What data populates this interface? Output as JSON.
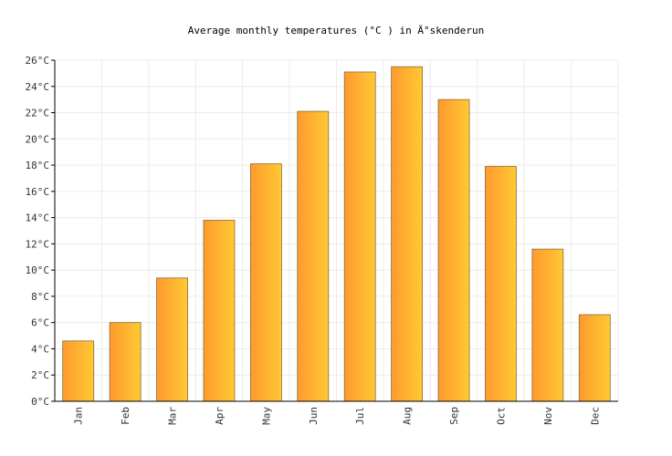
{
  "chart_data": {
    "type": "bar",
    "title": "Average monthly temperatures (°C ) in Ä°skenderun",
    "xlabel": "",
    "ylabel": "",
    "categories": [
      "Jan",
      "Feb",
      "Mar",
      "Apr",
      "May",
      "Jun",
      "Jul",
      "Aug",
      "Sep",
      "Oct",
      "Nov",
      "Dec"
    ],
    "values": [
      4.6,
      6.0,
      9.4,
      13.8,
      18.1,
      22.1,
      25.1,
      25.5,
      23.0,
      17.9,
      11.6,
      6.6
    ],
    "ylim": [
      0,
      26
    ],
    "yticks": [
      "0°C",
      "2°C",
      "4°C",
      "6°C",
      "8°C",
      "10°C",
      "12°C",
      "14°C",
      "16°C",
      "18°C",
      "20°C",
      "22°C",
      "24°C",
      "26°C"
    ],
    "grid": true,
    "legend": "none",
    "colors": {
      "bar_start": "#ff9a2e",
      "bar_end": "#ffc933",
      "bar_stroke": "#8a6a3a"
    }
  }
}
